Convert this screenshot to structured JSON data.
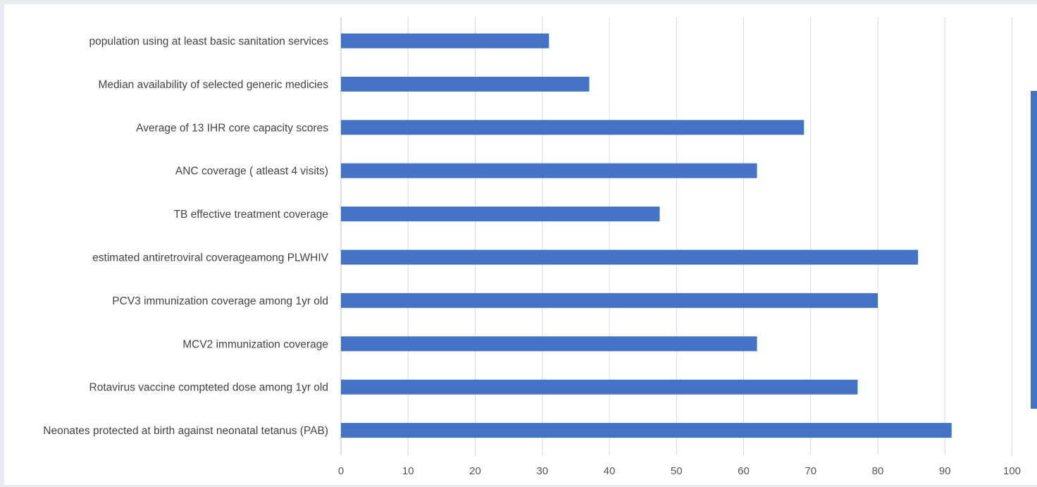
{
  "chart_data": {
    "type": "bar",
    "orientation": "horizontal",
    "categories": [
      "population using at least basic sanitation services",
      "Median availability of selected generic medicies",
      "Average of 13 IHR core capacity scores",
      "ANC coverage ( atleast 4 visits)",
      "TB effective treatment coverage",
      "estimated antiretroviral coverageamong PLWHIV",
      "PCV3 immunization coverage among 1yr old",
      "MCV2 immunization coverage",
      "Rotavirus vaccine compteted dose among 1yr old",
      "Neonates protected at birth against neonatal tetanus (PAB)"
    ],
    "values": [
      31,
      37,
      69,
      62,
      47.5,
      86,
      80,
      62,
      77,
      91
    ],
    "xlim": [
      0,
      100
    ],
    "xticks": [
      "0",
      "10",
      "20",
      "30",
      "40",
      "50",
      "60",
      "70",
      "80",
      "90",
      "100"
    ],
    "title": "",
    "xlabel": "",
    "ylabel": "",
    "grid": "vertical",
    "bar_color": "#4472c4"
  }
}
